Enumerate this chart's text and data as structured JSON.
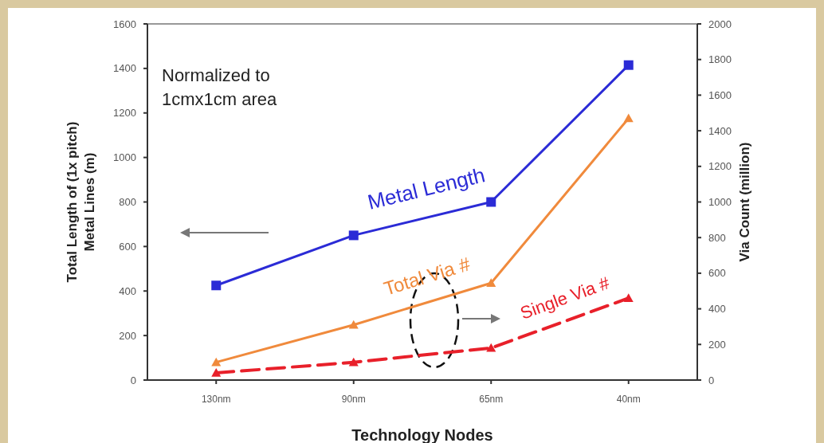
{
  "chart_data": {
    "type": "line",
    "xlabel": "Technology Nodes",
    "ylabel": "Total Length of (1x pitch)\nMetal Lines (m)",
    "y2label": "Via Count (million)",
    "categories": [
      "130nm",
      "90nm",
      "65nm",
      "40nm"
    ],
    "series": [
      {
        "name": "Metal Length",
        "color": "#2b2bd6",
        "values": [
          425,
          650,
          800,
          1415
        ],
        "marker": "square",
        "line_style": "solid"
      },
      {
        "name": "Total Via #",
        "color": "#f08a3c",
        "values": [
          100,
          310,
          545,
          1470
        ],
        "marker": "triangle",
        "line_style": "solid",
        "axis": "y2"
      },
      {
        "name": "Single Via #",
        "color": "#e8202a",
        "values": [
          40,
          100,
          180,
          460
        ],
        "marker": "triangle",
        "line_style": "dashed",
        "axis": "y2"
      }
    ],
    "ylim": [
      0,
      1600
    ],
    "yticks": [
      0,
      200,
      400,
      600,
      800,
      1000,
      1200,
      1400,
      1600
    ],
    "y2lim": [
      0,
      2000
    ],
    "y2ticks": [
      0,
      200,
      400,
      600,
      800,
      1000,
      1200,
      1400,
      1600,
      1800,
      2000
    ],
    "annotations": [
      "Normalized to\n1cmx1cm area"
    ],
    "grid": false
  }
}
